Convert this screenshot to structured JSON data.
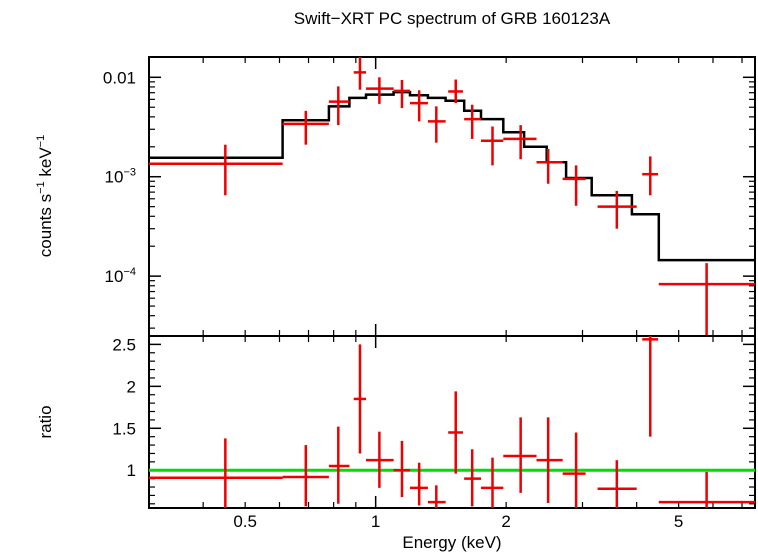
{
  "chart_data": [
    {
      "type": "scatter",
      "panel": "spectrum",
      "title": "Swift−XRT PC spectrum of GRB 160123A",
      "xlabel": "Energy (keV)",
      "ylabel_parts": {
        "base": "counts s",
        "exp1": "−1",
        "mid": " keV",
        "exp2": "−1"
      },
      "x_scale": "log",
      "y_scale": "log",
      "xlim": [
        0.3,
        7.5
      ],
      "ylim": [
        2.5e-05,
        0.016
      ],
      "yticks_major": [
        {
          "value": 0.01,
          "base": "0.01",
          "exp": ""
        },
        {
          "value": 0.001,
          "base": "10",
          "exp": "−3"
        },
        {
          "value": 0.0001,
          "base": "10",
          "exp": "−4"
        }
      ],
      "colors": {
        "data": "#ee0000",
        "model": "#000000"
      },
      "series": [
        {
          "name": "data",
          "points": [
            {
              "x": 0.45,
              "xlo": 0.3,
              "xhi": 0.61,
              "y": 0.00135,
              "ylo": 0.00065,
              "yhi": 0.0021
            },
            {
              "x": 0.69,
              "xlo": 0.61,
              "xhi": 0.78,
              "y": 0.0034,
              "ylo": 0.0021,
              "yhi": 0.0046
            },
            {
              "x": 0.82,
              "xlo": 0.78,
              "xhi": 0.87,
              "y": 0.0057,
              "ylo": 0.0033,
              "yhi": 0.0081
            },
            {
              "x": 0.92,
              "xlo": 0.89,
              "xhi": 0.95,
              "y": 0.0112,
              "ylo": 0.0075,
              "yhi": 0.0162
            },
            {
              "x": 1.02,
              "xlo": 0.95,
              "xhi": 1.1,
              "y": 0.0077,
              "ylo": 0.0054,
              "yhi": 0.01
            },
            {
              "x": 1.15,
              "xlo": 1.1,
              "xhi": 1.2,
              "y": 0.0073,
              "ylo": 0.0049,
              "yhi": 0.0094
            },
            {
              "x": 1.26,
              "xlo": 1.2,
              "xhi": 1.32,
              "y": 0.0055,
              "ylo": 0.0036,
              "yhi": 0.0074
            },
            {
              "x": 1.38,
              "xlo": 1.32,
              "xhi": 1.45,
              "y": 0.0036,
              "ylo": 0.0022,
              "yhi": 0.0051
            },
            {
              "x": 1.53,
              "xlo": 1.47,
              "xhi": 1.59,
              "y": 0.0072,
              "ylo": 0.0055,
              "yhi": 0.0095
            },
            {
              "x": 1.67,
              "xlo": 1.6,
              "xhi": 1.75,
              "y": 0.0038,
              "ylo": 0.0024,
              "yhi": 0.0053
            },
            {
              "x": 1.86,
              "xlo": 1.75,
              "xhi": 1.97,
              "y": 0.0023,
              "ylo": 0.0013,
              "yhi": 0.0032
            },
            {
              "x": 2.16,
              "xlo": 1.97,
              "xhi": 2.35,
              "y": 0.0024,
              "ylo": 0.0015,
              "yhi": 0.0033
            },
            {
              "x": 2.5,
              "xlo": 2.35,
              "xhi": 2.7,
              "y": 0.0014,
              "ylo": 0.00085,
              "yhi": 0.0019
            },
            {
              "x": 2.9,
              "xlo": 2.7,
              "xhi": 3.05,
              "y": 0.00095,
              "ylo": 0.00051,
              "yhi": 0.0013
            },
            {
              "x": 3.6,
              "xlo": 3.25,
              "xhi": 4.0,
              "y": 0.0005,
              "ylo": 0.0003,
              "yhi": 0.00072
            },
            {
              "x": 4.3,
              "xlo": 4.12,
              "xhi": 4.48,
              "y": 0.00106,
              "ylo": 0.00065,
              "yhi": 0.0016
            },
            {
              "x": 5.8,
              "xlo": 4.5,
              "xhi": 7.5,
              "y": 8.3e-05,
              "ylo": 2.5e-05,
              "yhi": 0.000135
            }
          ]
        },
        {
          "name": "model",
          "step_edges": [
            0.3,
            0.61,
            0.78,
            0.87,
            0.95,
            1.1,
            1.2,
            1.32,
            1.45,
            1.6,
            1.75,
            1.97,
            2.2,
            2.48,
            2.75,
            3.15,
            3.9,
            4.5,
            7.5
          ],
          "step_values": [
            0.00155,
            0.0037,
            0.0051,
            0.0062,
            0.0067,
            0.0071,
            0.0066,
            0.0062,
            0.0058,
            0.0046,
            0.0038,
            0.0028,
            0.002,
            0.0014,
            0.00097,
            0.00065,
            0.00042,
            0.000145
          ]
        }
      ]
    },
    {
      "type": "scatter",
      "panel": "ratio",
      "ylabel": "ratio",
      "xlabel": "Energy (keV)",
      "x_scale": "log",
      "xlim": [
        0.3,
        7.5
      ],
      "ylim": [
        0.55,
        2.6
      ],
      "yticks": [
        "2.5",
        "2",
        "1.5",
        "1"
      ],
      "xticks": [
        "0.5",
        "1",
        "2",
        "5"
      ],
      "reference_line": 1,
      "colors": {
        "data": "#ee0000",
        "reference": "#00dd00"
      },
      "points": [
        {
          "x": 0.45,
          "xlo": 0.3,
          "xhi": 0.61,
          "y": 0.91,
          "ylo": 0.46,
          "yhi": 1.38
        },
        {
          "x": 0.69,
          "xlo": 0.61,
          "xhi": 0.78,
          "y": 0.92,
          "ylo": 0.57,
          "yhi": 1.3
        },
        {
          "x": 0.82,
          "xlo": 0.78,
          "xhi": 0.87,
          "y": 1.05,
          "ylo": 0.6,
          "yhi": 1.52
        },
        {
          "x": 0.92,
          "xlo": 0.89,
          "xhi": 0.95,
          "y": 1.85,
          "ylo": 1.2,
          "yhi": 2.5
        },
        {
          "x": 1.02,
          "xlo": 0.95,
          "xhi": 1.1,
          "y": 1.12,
          "ylo": 0.79,
          "yhi": 1.46
        },
        {
          "x": 1.15,
          "xlo": 1.1,
          "xhi": 1.2,
          "y": 1.0,
          "ylo": 0.68,
          "yhi": 1.35
        },
        {
          "x": 1.26,
          "xlo": 1.2,
          "xhi": 1.32,
          "y": 0.79,
          "ylo": 0.58,
          "yhi": 1.09
        },
        {
          "x": 1.38,
          "xlo": 1.32,
          "xhi": 1.45,
          "y": 0.62,
          "ylo": 0.4,
          "yhi": 0.82
        },
        {
          "x": 1.53,
          "xlo": 1.47,
          "xhi": 1.59,
          "y": 1.45,
          "ylo": 0.96,
          "yhi": 1.94
        },
        {
          "x": 1.67,
          "xlo": 1.6,
          "xhi": 1.75,
          "y": 0.9,
          "ylo": 0.57,
          "yhi": 1.25
        },
        {
          "x": 1.86,
          "xlo": 1.75,
          "xhi": 1.97,
          "y": 0.79,
          "ylo": 0.46,
          "yhi": 1.15
        },
        {
          "x": 2.16,
          "xlo": 1.97,
          "xhi": 2.35,
          "y": 1.17,
          "ylo": 0.73,
          "yhi": 1.63
        },
        {
          "x": 2.5,
          "xlo": 2.35,
          "xhi": 2.7,
          "y": 1.12,
          "ylo": 0.61,
          "yhi": 1.63
        },
        {
          "x": 2.9,
          "xlo": 2.7,
          "xhi": 3.05,
          "y": 0.96,
          "ylo": 0.52,
          "yhi": 1.45
        },
        {
          "x": 3.6,
          "xlo": 3.25,
          "xhi": 4.0,
          "y": 0.78,
          "ylo": 0.46,
          "yhi": 1.12
        },
        {
          "x": 4.3,
          "xlo": 4.12,
          "xhi": 4.48,
          "y": 2.56,
          "ylo": 1.4,
          "yhi": 2.9
        },
        {
          "x": 5.8,
          "xlo": 4.5,
          "xhi": 7.5,
          "y": 0.62,
          "ylo": 0.2,
          "yhi": 0.98
        }
      ]
    }
  ]
}
